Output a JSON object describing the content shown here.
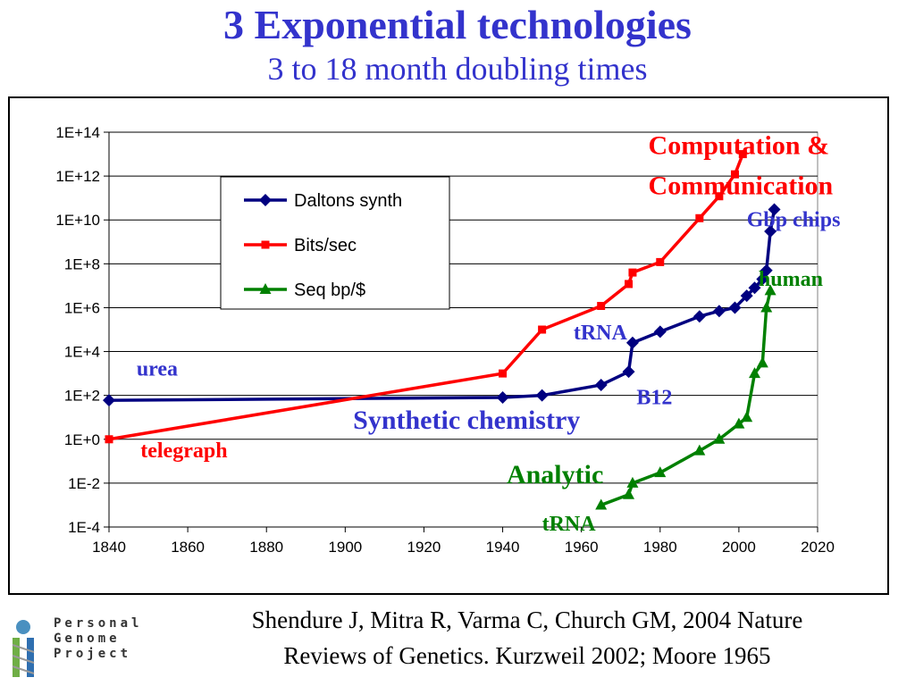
{
  "header": {
    "title": "3 Exponential technologies",
    "subtitle": "3 to 18 month doubling times"
  },
  "citation": {
    "line1": "Shendure J, Mitra R, Varma C, Church GM,  2004 Nature",
    "line2": "Reviews of Genetics.  Kurzweil 2002; Moore 1965"
  },
  "logo": {
    "line1": "Personal",
    "line2": "Genome",
    "line3": "Project"
  },
  "chart_data": {
    "type": "line",
    "yscale": "log",
    "xlim": [
      1840,
      2020
    ],
    "ylim": [
      0.0001,
      100000000000000
    ],
    "x_ticks": [
      1840,
      1860,
      1880,
      1900,
      1920,
      1940,
      1960,
      1980,
      2000,
      2020
    ],
    "y_ticks": [
      {
        "value": 0.0001,
        "label": "1E-4"
      },
      {
        "value": 0.01,
        "label": "1E-2"
      },
      {
        "value": 1,
        "label": "1E+0"
      },
      {
        "value": 100,
        "label": "1E+2"
      },
      {
        "value": 10000,
        "label": "1E+4"
      },
      {
        "value": 1000000,
        "label": "1E+6"
      },
      {
        "value": 100000000,
        "label": "1E+8"
      },
      {
        "value": 10000000000,
        "label": "1E+10"
      },
      {
        "value": 1000000000000,
        "label": "1E+12"
      },
      {
        "value": 100000000000000,
        "label": "1E+14"
      }
    ],
    "grid": "horizontal",
    "legend_position": "top-left",
    "series": [
      {
        "name": "Daltons synth",
        "color": "#000080",
        "marker": "diamond",
        "points": [
          [
            1840,
            60
          ],
          [
            1940,
            80
          ],
          [
            1950,
            100
          ],
          [
            1965,
            300
          ],
          [
            1972,
            1200
          ],
          [
            1973,
            25000
          ],
          [
            1980,
            80000
          ],
          [
            1990,
            400000
          ],
          [
            1995,
            700000
          ],
          [
            1999,
            1000000
          ],
          [
            2002,
            3500000
          ],
          [
            2004,
            8000000
          ],
          [
            2006,
            20000000
          ],
          [
            2007,
            50000000
          ],
          [
            2008,
            3000000000
          ],
          [
            2009,
            30000000000
          ]
        ]
      },
      {
        "name": "Bits/sec",
        "color": "#ff0000",
        "marker": "square",
        "points": [
          [
            1840,
            1
          ],
          [
            1940,
            1000
          ],
          [
            1950,
            100000
          ],
          [
            1965,
            1200000
          ],
          [
            1972,
            12000000
          ],
          [
            1973,
            40000000
          ],
          [
            1980,
            120000000
          ],
          [
            1990,
            12000000000
          ],
          [
            1995,
            120000000000
          ],
          [
            1999,
            1200000000000
          ],
          [
            2001,
            10000000000000
          ]
        ]
      },
      {
        "name": "Seq bp/$",
        "color": "#008000",
        "marker": "triangle",
        "points": [
          [
            1965,
            0.001
          ],
          [
            1972,
            0.003
          ],
          [
            1973,
            0.01
          ],
          [
            1980,
            0.03
          ],
          [
            1990,
            0.3
          ],
          [
            1995,
            1
          ],
          [
            2000,
            5
          ],
          [
            2002,
            10
          ],
          [
            2004,
            1000
          ],
          [
            2006,
            3000
          ],
          [
            2007,
            1000000
          ],
          [
            2008,
            6000000
          ]
        ]
      }
    ],
    "annotations": [
      {
        "text": "Computation &",
        "x": 1977,
        "y": 10000000000000,
        "color": "#ff0000",
        "size": 30
      },
      {
        "text": "Communication",
        "x": 1977,
        "y": 150000000000,
        "color": "#ff0000",
        "size": 30
      },
      {
        "text": "Gbp chips",
        "x": 2002,
        "y": 5000000000,
        "color": "#3333cc",
        "size": 24
      },
      {
        "text": "human",
        "x": 2005,
        "y": 10000000,
        "color": "#008000",
        "size": 24
      },
      {
        "text": "tRNA",
        "x": 1958,
        "y": 35000,
        "color": "#3333cc",
        "size": 24
      },
      {
        "text": "urea",
        "x": 1847,
        "y": 800,
        "color": "#3333cc",
        "size": 24
      },
      {
        "text": "B12",
        "x": 1974,
        "y": 40,
        "color": "#3333cc",
        "size": 24
      },
      {
        "text": "Synthetic chemistry",
        "x": 1902,
        "y": 3,
        "color": "#3333cc",
        "size": 30
      },
      {
        "text": "telegraph",
        "x": 1848,
        "y": 0.15,
        "color": "#ff0000",
        "size": 24
      },
      {
        "text": "Analytic",
        "x": 1941,
        "y": 0.01,
        "color": "#008000",
        "size": 30
      },
      {
        "text": "tRNA",
        "x": 1950,
        "y": 7e-05,
        "color": "#008000",
        "size": 24
      }
    ]
  }
}
